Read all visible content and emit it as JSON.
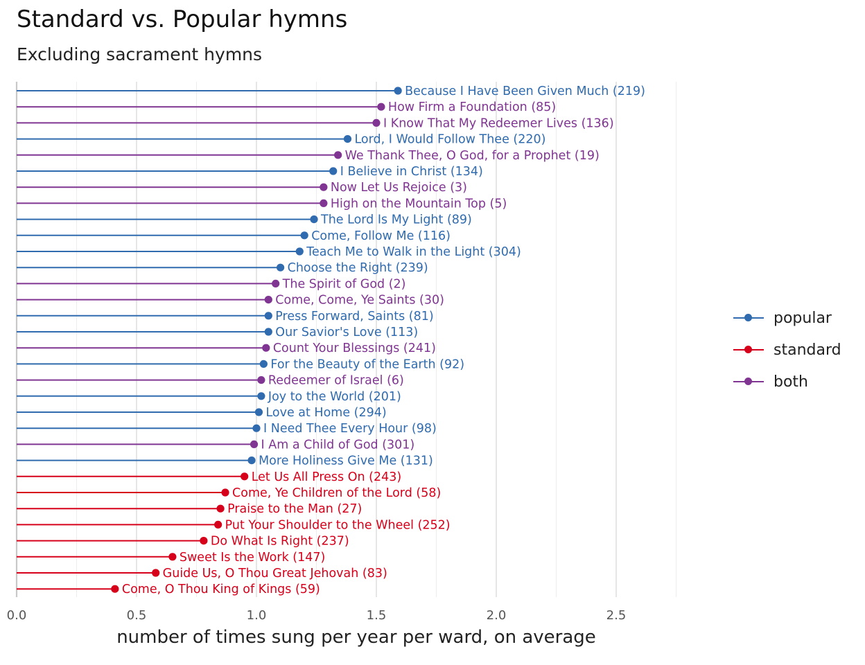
{
  "title": "Standard vs. Popular hymns",
  "subtitle": "Excluding sacrament hymns",
  "chart_data": {
    "type": "lollipop",
    "title": "Standard vs. Popular hymns",
    "subtitle": "Excluding sacrament hymns",
    "xlabel": "number of times sung per year per ward, on average",
    "ylabel": "",
    "xlim": [
      0,
      2.75
    ],
    "xticks": [
      0,
      0.5,
      1,
      1.5,
      2,
      2.5
    ],
    "xtick_labels": [
      "0.0",
      "0.5",
      "1.0",
      "1.5",
      "2.0",
      "2.5"
    ],
    "grid": "vertical",
    "legend_position": "right",
    "groups": [
      {
        "key": "popular",
        "label": "popular",
        "color": "#2F6BAE"
      },
      {
        "key": "standard",
        "label": "standard",
        "color": "#D7001A"
      },
      {
        "key": "both",
        "label": "both",
        "color": "#7F3591"
      }
    ],
    "hymns": [
      {
        "label": "Because I Have Been Given Much (219)",
        "value": 1.59,
        "group": "popular"
      },
      {
        "label": "How Firm a Foundation (85)",
        "value": 1.52,
        "group": "both"
      },
      {
        "label": "I Know That My Redeemer Lives (136)",
        "value": 1.5,
        "group": "both"
      },
      {
        "label": "Lord, I Would Follow Thee (220)",
        "value": 1.38,
        "group": "popular"
      },
      {
        "label": "We Thank Thee, O God, for a Prophet (19)",
        "value": 1.34,
        "group": "both"
      },
      {
        "label": "I Believe in Christ (134)",
        "value": 1.32,
        "group": "popular"
      },
      {
        "label": "Now Let Us Rejoice (3)",
        "value": 1.28,
        "group": "both"
      },
      {
        "label": "High on the Mountain Top (5)",
        "value": 1.28,
        "group": "both"
      },
      {
        "label": "The Lord Is My Light (89)",
        "value": 1.24,
        "group": "popular"
      },
      {
        "label": "Come, Follow Me (116)",
        "value": 1.2,
        "group": "popular"
      },
      {
        "label": "Teach Me to Walk in the Light (304)",
        "value": 1.18,
        "group": "popular"
      },
      {
        "label": "Choose the Right (239)",
        "value": 1.1,
        "group": "popular"
      },
      {
        "label": "The Spirit of God (2)",
        "value": 1.08,
        "group": "both"
      },
      {
        "label": "Come, Come, Ye Saints (30)",
        "value": 1.05,
        "group": "both"
      },
      {
        "label": "Press Forward, Saints (81)",
        "value": 1.05,
        "group": "popular"
      },
      {
        "label": "Our Savior's Love (113)",
        "value": 1.05,
        "group": "popular"
      },
      {
        "label": "Count Your Blessings (241)",
        "value": 1.04,
        "group": "both"
      },
      {
        "label": "For the Beauty of the Earth (92)",
        "value": 1.03,
        "group": "popular"
      },
      {
        "label": "Redeemer of Israel (6)",
        "value": 1.02,
        "group": "both"
      },
      {
        "label": "Joy to the World (201)",
        "value": 1.02,
        "group": "popular"
      },
      {
        "label": "Love at Home (294)",
        "value": 1.01,
        "group": "popular"
      },
      {
        "label": "I Need Thee Every Hour (98)",
        "value": 1.0,
        "group": "popular"
      },
      {
        "label": "I Am a Child of God (301)",
        "value": 0.99,
        "group": "both"
      },
      {
        "label": "More Holiness Give Me (131)",
        "value": 0.98,
        "group": "popular"
      },
      {
        "label": "Let Us All Press On (243)",
        "value": 0.95,
        "group": "standard"
      },
      {
        "label": "Come, Ye Children of the Lord (58)",
        "value": 0.87,
        "group": "standard"
      },
      {
        "label": "Praise to the Man (27)",
        "value": 0.85,
        "group": "standard"
      },
      {
        "label": "Put Your Shoulder to the Wheel (252)",
        "value": 0.84,
        "group": "standard"
      },
      {
        "label": "Do What Is Right (237)",
        "value": 0.78,
        "group": "standard"
      },
      {
        "label": "Sweet Is the Work (147)",
        "value": 0.65,
        "group": "standard"
      },
      {
        "label": "Guide Us, O Thou Great Jehovah (83)",
        "value": 0.58,
        "group": "standard"
      },
      {
        "label": "Come, O Thou King of Kings (59)",
        "value": 0.41,
        "group": "standard"
      }
    ]
  }
}
